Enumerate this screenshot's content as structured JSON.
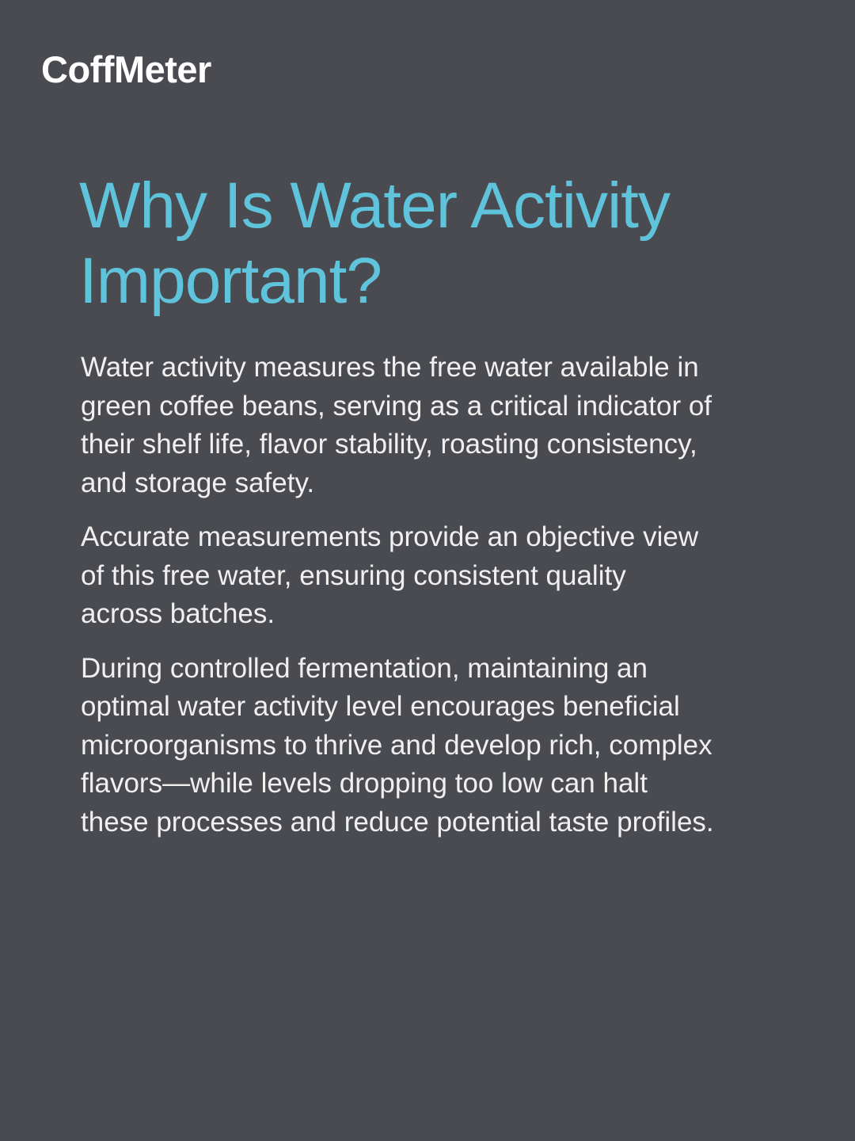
{
  "brand": "CoffMeter",
  "title": "Why Is Water Activity Important?",
  "paragraphs": [
    "Water activity measures the free water available in green coffee beans, serving as a critical indicator of their shelf life, flavor stability, roasting consistency, and storage safety.",
    "Accurate measurements provide an objective view of this free water, ensuring consistent quality across batches.",
    "During controlled fermentation, maintaining an optimal water activity level encourages beneficial microorganisms to thrive and develop rich, complex flavors—while levels dropping too low can halt these processes and reduce potential taste profiles."
  ],
  "colors": {
    "background": "#4a4b50",
    "accent": "#5fc3dc",
    "text": "#f0f0f0"
  }
}
